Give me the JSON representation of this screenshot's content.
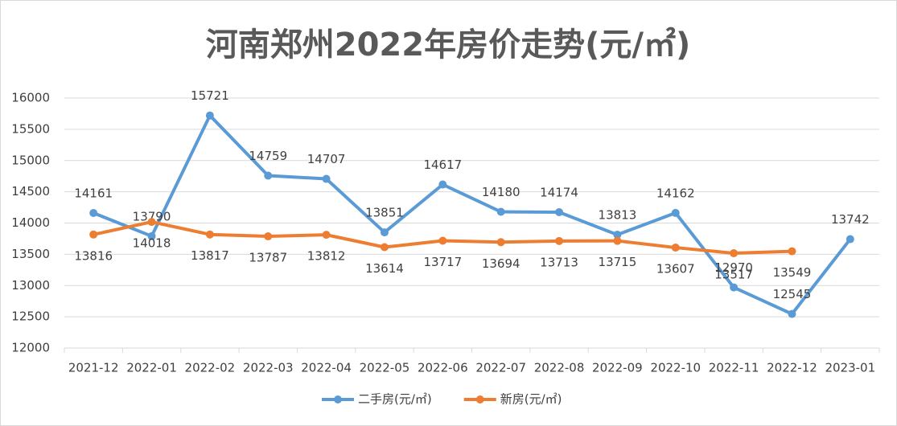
{
  "chart_data": {
    "type": "line",
    "title": "河南郑州2022年房价走势(元/㎡)",
    "categories": [
      "2021-12",
      "2022-01",
      "2022-02",
      "2022-03",
      "2022-04",
      "2022-05",
      "2022-06",
      "2022-07",
      "2022-08",
      "2022-09",
      "2022-10",
      "2022-11",
      "2022-12",
      "2023-01"
    ],
    "series": [
      {
        "name": "二手房(元/㎡)",
        "color": "#5b9bd5",
        "values": [
          14161,
          13790,
          15721,
          14759,
          14707,
          13851,
          14617,
          14180,
          14174,
          13813,
          14162,
          12970,
          12545,
          13742
        ]
      },
      {
        "name": "新房(元/㎡)",
        "color": "#ed7d31",
        "values": [
          13816,
          14018,
          13817,
          13787,
          13812,
          13614,
          13717,
          13694,
          13713,
          13715,
          13607,
          13517,
          13549,
          null
        ]
      }
    ],
    "ylim": [
      12000,
      16000
    ],
    "yticks": [
      12000,
      12500,
      13000,
      13500,
      14000,
      14500,
      15000,
      15500,
      16000
    ],
    "grid": true,
    "legend": "bottom"
  }
}
